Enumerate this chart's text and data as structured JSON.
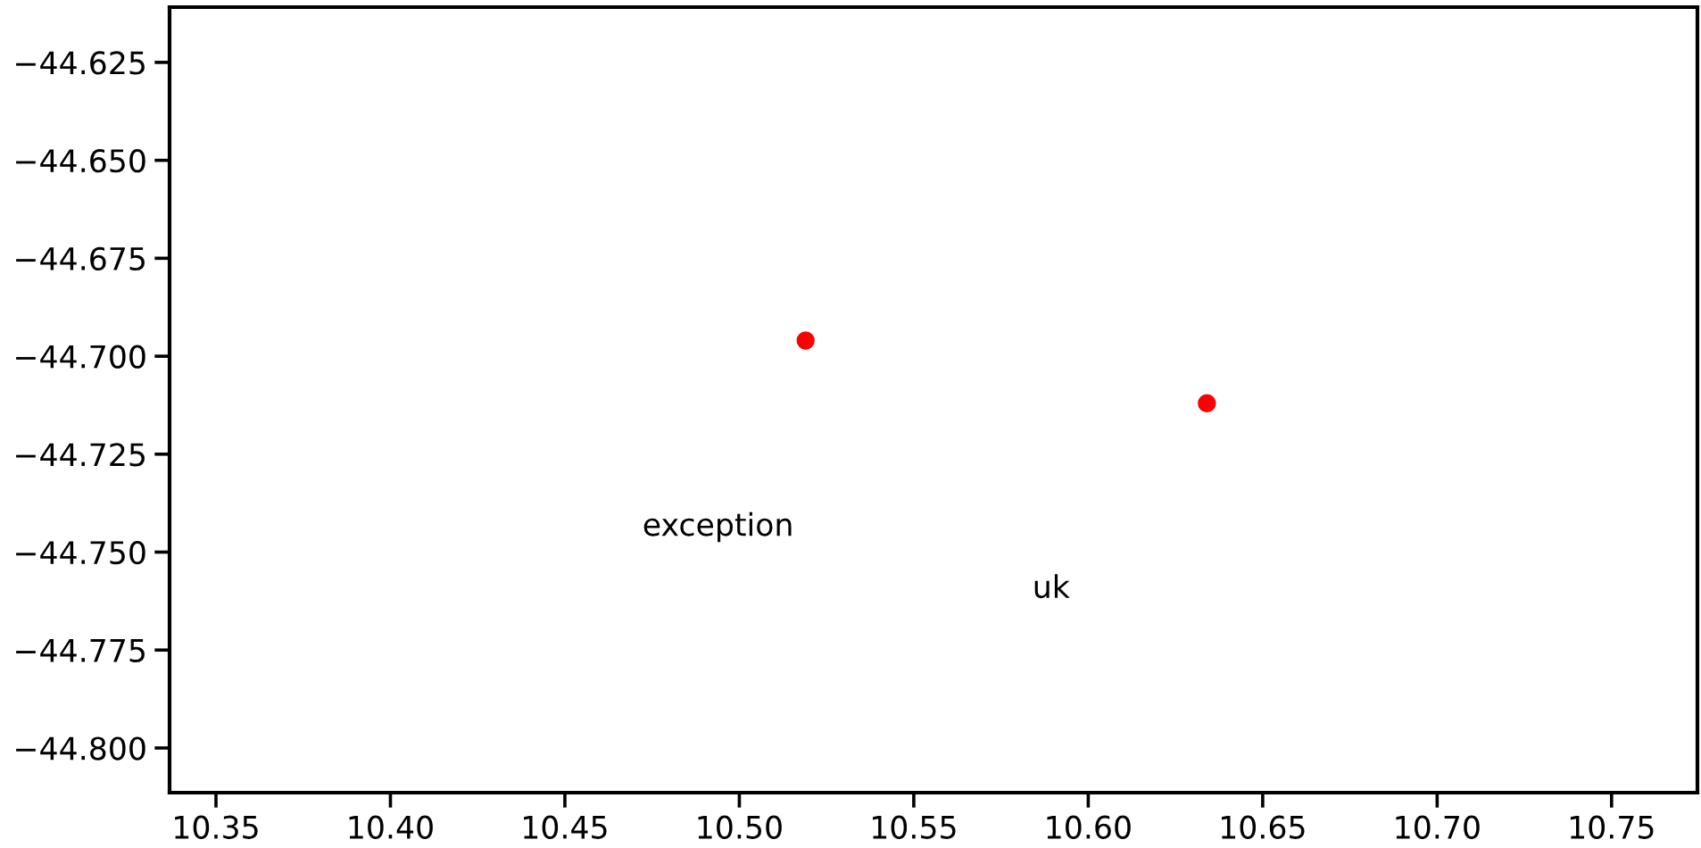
{
  "chart_data": {
    "type": "scatter",
    "series": [
      {
        "color": "#ff0000",
        "x": [
          10.519,
          10.634
        ],
        "values": [
          -44.696,
          -44.712
        ]
      }
    ],
    "annotations": [
      "exception",
      "uk"
    ],
    "xlim": [
      10.3367,
      10.7746
    ],
    "ylim": [
      -44.8114,
      -44.6109
    ],
    "xticks": [
      {
        "value": 10.35,
        "label": "10.35"
      },
      {
        "value": 10.4,
        "label": "10.40"
      },
      {
        "value": 10.45,
        "label": "10.45"
      },
      {
        "value": 10.5,
        "label": "10.50"
      },
      {
        "value": 10.55,
        "label": "10.55"
      },
      {
        "value": 10.6,
        "label": "10.60"
      },
      {
        "value": 10.65,
        "label": "10.65"
      },
      {
        "value": 10.7,
        "label": "10.70"
      },
      {
        "value": 10.75,
        "label": "10.75"
      }
    ],
    "yticks": [
      {
        "value": -44.625,
        "label": "−44.625"
      },
      {
        "value": -44.65,
        "label": "−44.650"
      },
      {
        "value": -44.675,
        "label": "−44.675"
      },
      {
        "value": -44.7,
        "label": "−44.700"
      },
      {
        "value": -44.725,
        "label": "−44.725"
      },
      {
        "value": -44.75,
        "label": "−44.750"
      },
      {
        "value": -44.775,
        "label": "−44.775"
      },
      {
        "value": -44.8,
        "label": "−44.800"
      }
    ],
    "marker": "circle",
    "grid": false,
    "legend": false
  }
}
